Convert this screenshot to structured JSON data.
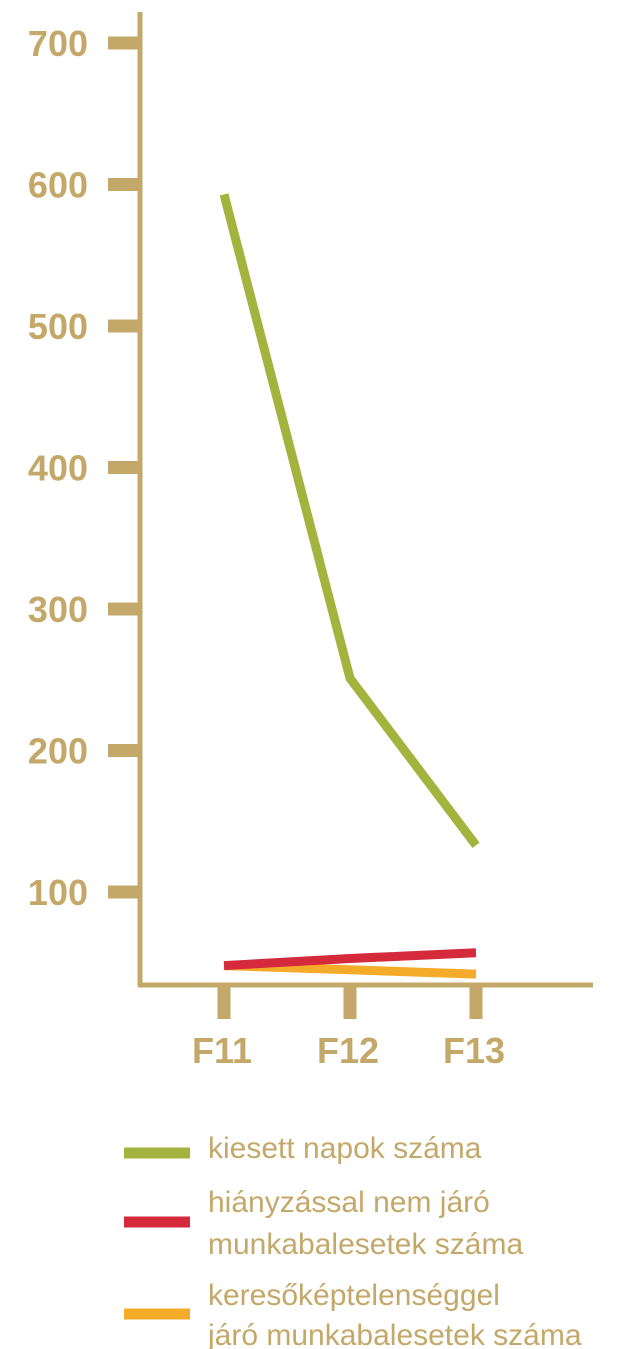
{
  "colors": {
    "axis": "#c3a869",
    "tick_text": "#c3a869",
    "legend_text": "#c3a869"
  },
  "chart_data": {
    "type": "line",
    "title": "",
    "xlabel": "",
    "ylabel": "",
    "categories": [
      "F11",
      "F12",
      "F13"
    ],
    "y_ticks": [
      100,
      200,
      300,
      400,
      500,
      600,
      700
    ],
    "ylim": [
      30,
      715
    ],
    "grid": false,
    "legend_position": "bottom",
    "series": [
      {
        "name": "kiesett napok száma",
        "color": "#a2b43e",
        "values": [
          593,
          251,
          133
        ]
      },
      {
        "name": "hiányzással nem járó munkabalesetek száma",
        "legend_lines": [
          "hiányzással nem járó",
          "munkabalesetek száma"
        ],
        "color": "#d42a3c",
        "values": [
          48,
          53,
          57
        ]
      },
      {
        "name": "keresőképtelenséggel járó munkabalesetek száma",
        "legend_lines": [
          "keresőképtelenséggel",
          "járó munkabalesetek száma"
        ],
        "color": "#f4ab2a",
        "values": [
          48,
          45,
          42
        ]
      }
    ]
  }
}
